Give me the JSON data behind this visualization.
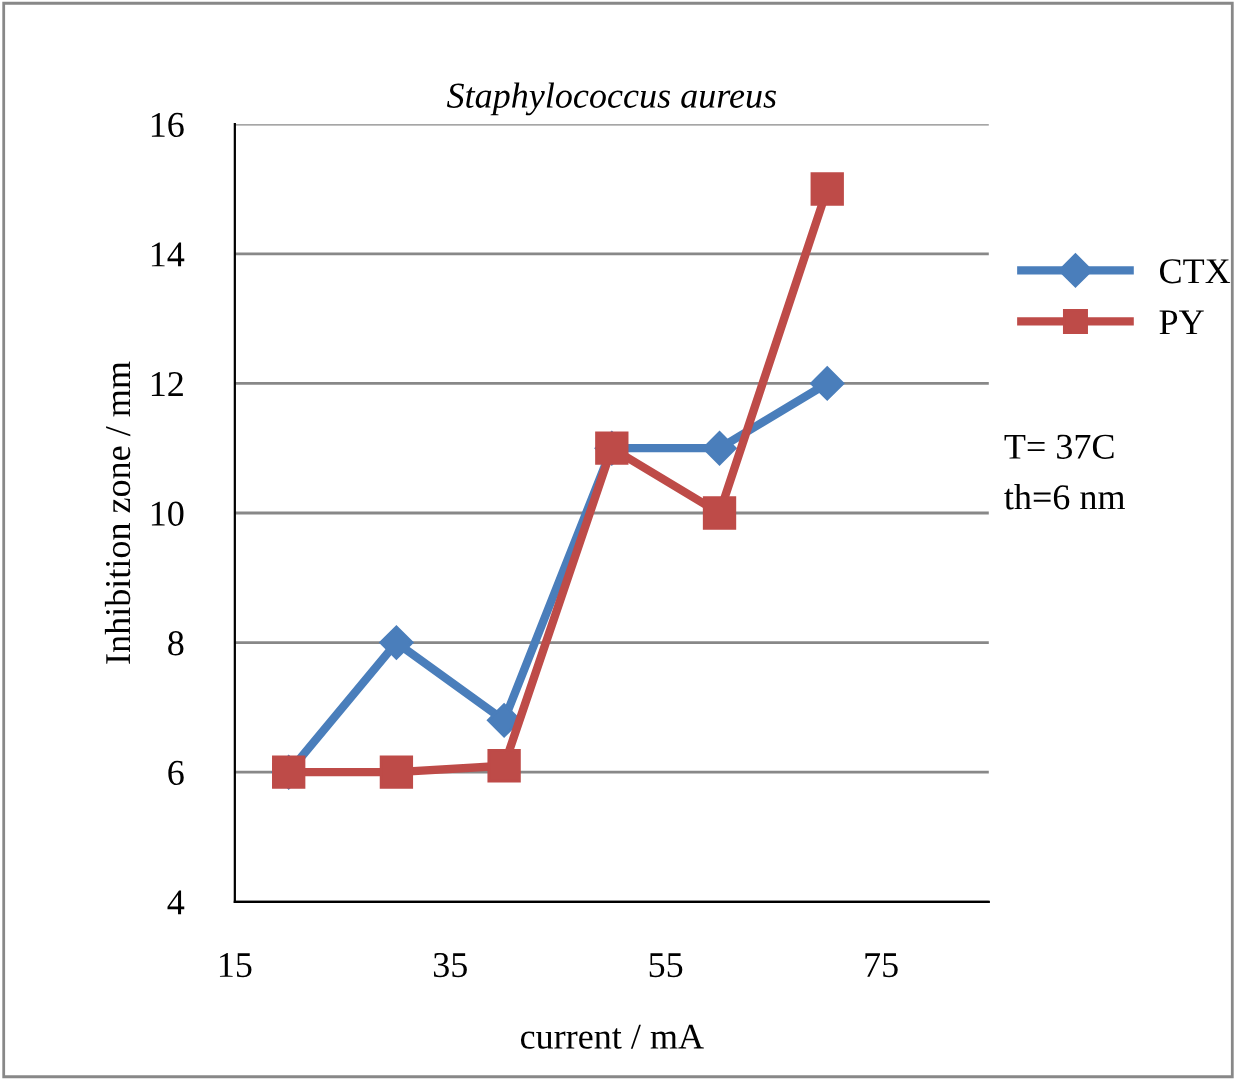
{
  "chart_data": {
    "type": "line",
    "title": "Staphylococcus aureus",
    "xlabel": "current / mA",
    "ylabel": "Inhibition zone / mm",
    "x": [
      20,
      30,
      40,
      50,
      60,
      70
    ],
    "series": [
      {
        "name": "CTX",
        "color": "#4a7ebb",
        "marker": "diamond",
        "values": [
          6,
          8,
          6.8,
          11,
          11,
          12
        ]
      },
      {
        "name": "PY",
        "color": "#be4b48",
        "marker": "square",
        "values": [
          6,
          6,
          6.1,
          11,
          10,
          15
        ]
      }
    ],
    "xlim": [
      15,
      85
    ],
    "xticks": [
      15,
      35,
      55,
      75
    ],
    "ylim": [
      4,
      16
    ],
    "yticks": [
      4,
      6,
      8,
      10,
      12,
      14,
      16
    ],
    "grid": "y",
    "legend": "right",
    "line_style": "solid",
    "annotations": [
      "T= 37C",
      "th=6 nm"
    ]
  }
}
